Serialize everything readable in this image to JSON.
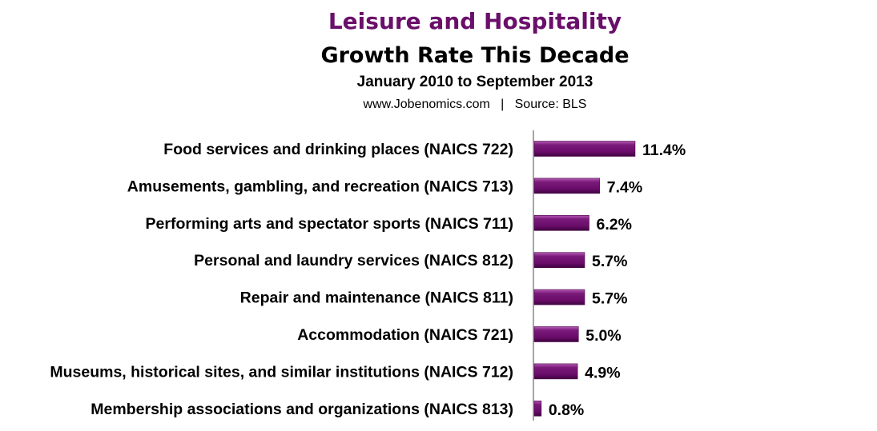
{
  "chart_data": {
    "type": "bar",
    "orientation": "horizontal",
    "title": "Leisure and Hospitality",
    "subtitle": "Growth Rate This Decade",
    "date_range": "January  2010 to September 2013",
    "source_line": "www.Jobenomics.com   |   Source: BLS",
    "categories": [
      "Food services and drinking places (NAICS 722)",
      "Amusements, gambling, and recreation (NAICS 713)",
      "Performing arts and spectator sports (NAICS 711)",
      "Personal and laundry services (NAICS 812)",
      "Repair and maintenance (NAICS 811)",
      "Accommodation (NAICS 721)",
      "Museums, historical sites, and similar institutions (NAICS 712)",
      "Membership associations and organizations (NAICS 813)"
    ],
    "values": [
      11.4,
      7.4,
      6.2,
      5.7,
      5.7,
      5.0,
      4.9,
      0.8
    ],
    "labels": [
      "11.4%",
      "7.4%",
      "6.2%",
      "5.7%",
      "5.7%",
      "5.0%",
      "4.9%",
      "0.8%"
    ],
    "xlabel": "",
    "ylabel": "",
    "xlim": [
      0,
      13
    ],
    "grid": false,
    "legend": "none",
    "colors": {
      "bar": "#6e0f6e",
      "title": "#6a0f6a"
    }
  }
}
